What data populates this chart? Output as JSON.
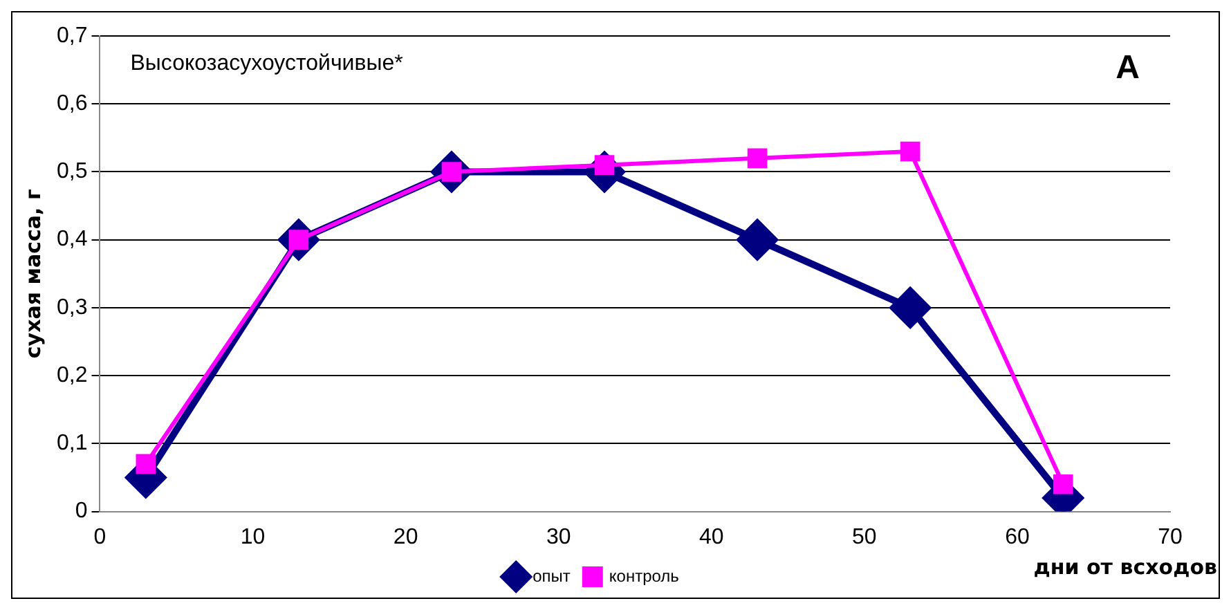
{
  "chart_data": {
    "type": "line",
    "xlabel": "дни от всходов",
    "ylabel": "сухая масса, г",
    "annotations": [
      "Высокозасухоустойчивые*",
      "А"
    ],
    "x": [
      3,
      13,
      23,
      33,
      43,
      53,
      63
    ],
    "series": [
      {
        "name": "опыт",
        "color": "#000080",
        "marker": "diamond",
        "values": [
          0.05,
          0.4,
          0.5,
          0.5,
          0.4,
          0.3,
          0.02
        ]
      },
      {
        "name": "контроль",
        "color": "#ff00ff",
        "marker": "square",
        "values": [
          0.07,
          0.4,
          0.5,
          0.51,
          0.52,
          0.53,
          0.04
        ]
      }
    ],
    "xlim": [
      0,
      70
    ],
    "xticks": [
      0,
      10,
      20,
      30,
      40,
      50,
      60,
      70
    ],
    "ylim": [
      0,
      0.7
    ],
    "yticks": [
      {
        "value": 0,
        "label": "0"
      },
      {
        "value": 0.1,
        "label": "0,1"
      },
      {
        "value": 0.2,
        "label": "0,2"
      },
      {
        "value": 0.3,
        "label": "0,3"
      },
      {
        "value": 0.4,
        "label": "0,4"
      },
      {
        "value": 0.5,
        "label": "0,5"
      },
      {
        "value": 0.6,
        "label": "0,6"
      },
      {
        "value": 0.7,
        "label": "0,7"
      }
    ],
    "grid": "y",
    "legend": "bottom",
    "line_style": "solid"
  }
}
